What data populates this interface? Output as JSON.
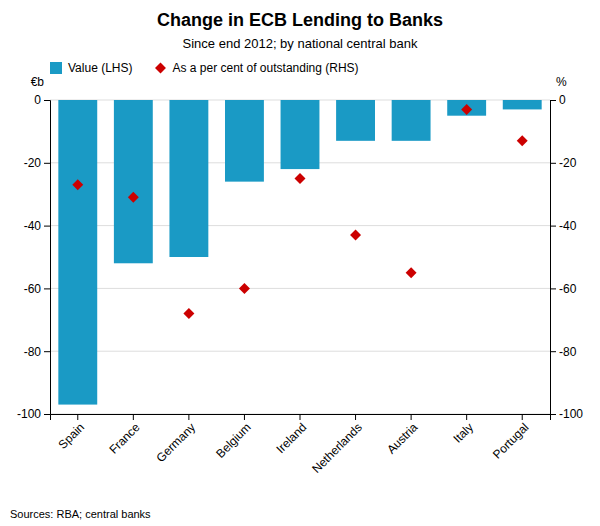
{
  "chart_data": {
    "type": "bar",
    "title": "Change in ECB Lending to Banks",
    "subtitle": "Since end 2012; by national central bank",
    "source": "Sources: RBA; central banks",
    "ylabel": "€b",
    "y2label": "%",
    "categories": [
      "Spain",
      "France",
      "Germany",
      "Belgium",
      "Ireland",
      "Netherlands",
      "Austria",
      "Italy",
      "Portugal"
    ],
    "series": [
      {
        "name": "Value (LHS)",
        "type": "bar",
        "color": "#1a9ac5",
        "values": [
          -97,
          -52,
          -50,
          -26,
          -22,
          -13,
          -13,
          -5,
          -3
        ]
      },
      {
        "name": "As a per cent of outstanding (RHS)",
        "type": "scatter",
        "marker": "diamond",
        "color": "#cc0000",
        "axis": "y2",
        "values": [
          -27,
          -31,
          -68,
          -60,
          -25,
          -43,
          -55,
          -3,
          -13
        ]
      }
    ],
    "ylim": [
      -100,
      0
    ],
    "yticks": [
      -100,
      -80,
      -60,
      -40,
      -20,
      0
    ],
    "y2lim": [
      -100,
      0
    ],
    "y2ticks": [
      -100,
      -80,
      -60,
      -40,
      -20,
      0
    ],
    "grid": true,
    "legend": "top-left"
  }
}
